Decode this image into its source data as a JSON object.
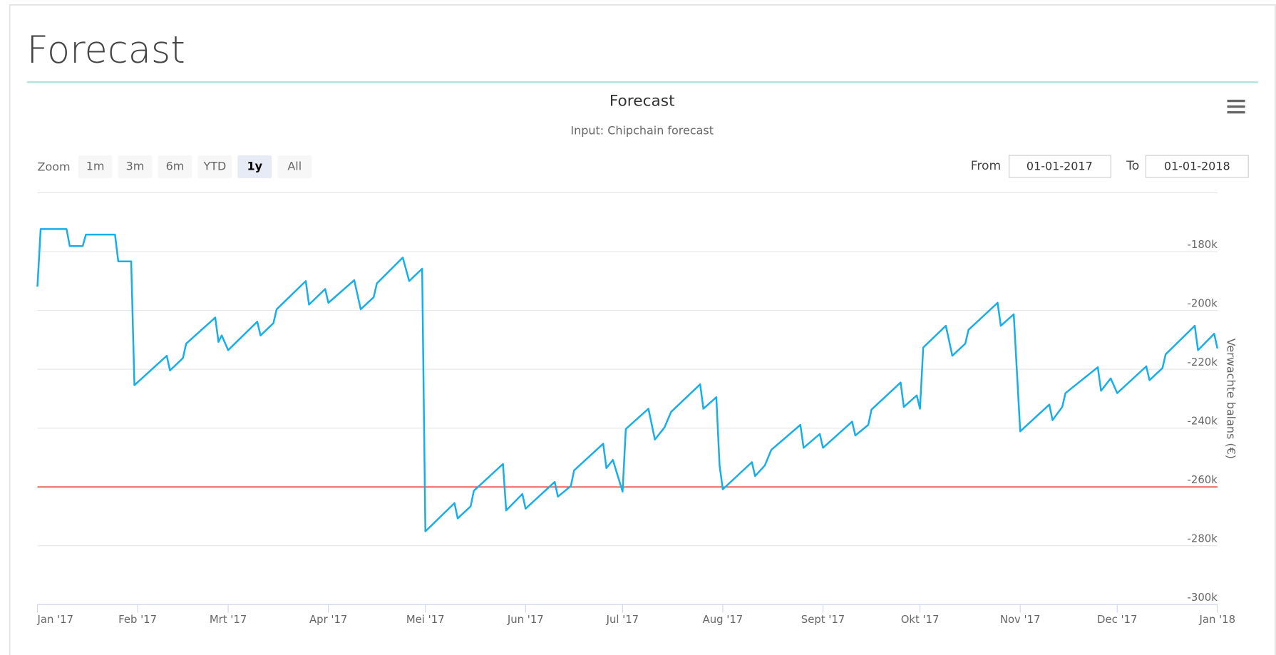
{
  "header": {
    "title": "Forecast"
  },
  "controls": {
    "zoom_label": "Zoom",
    "zoom_buttons": [
      "1m",
      "3m",
      "6m",
      "YTD",
      "1y",
      "All"
    ],
    "zoom_selected": 4,
    "from_label": "From",
    "from": "01-01-2017",
    "to_label": "To",
    "to": "01-01-2018"
  },
  "chart_data": {
    "type": "line",
    "title": "Forecast",
    "subtitle": "Input: Chipchain forecast",
    "y_axis_label": "Verwachte balans (€)",
    "y_axis_side": "right",
    "grid": true,
    "xlim": [
      0,
      365
    ],
    "xticks": [
      {
        "value": 0,
        "label": "Jan '17"
      },
      {
        "value": 31,
        "label": "Feb '17"
      },
      {
        "value": 59,
        "label": "Mrt '17"
      },
      {
        "value": 90,
        "label": "Apr '17"
      },
      {
        "value": 120,
        "label": "Mei '17"
      },
      {
        "value": 151,
        "label": "Jun '17"
      },
      {
        "value": 181,
        "label": "Jul '17"
      },
      {
        "value": 212,
        "label": "Aug '17"
      },
      {
        "value": 243,
        "label": "Sept '17"
      },
      {
        "value": 273,
        "label": "Okt '17"
      },
      {
        "value": 304,
        "label": "Nov '17"
      },
      {
        "value": 334,
        "label": "Dec '17"
      },
      {
        "value": 365,
        "label": "Jan '18"
      }
    ],
    "ylim": [
      -300000,
      -160000
    ],
    "yticks": [
      {
        "value": -300000,
        "label": "-300k"
      },
      {
        "value": -280000,
        "label": "-280k"
      },
      {
        "value": -260000,
        "label": "-260k"
      },
      {
        "value": -240000,
        "label": "-240k"
      },
      {
        "value": -220000,
        "label": "-220k"
      },
      {
        "value": -200000,
        "label": "-200k"
      },
      {
        "value": -180000,
        "label": "-180k"
      }
    ],
    "plot_line": {
      "value": -260000,
      "color": "#f0433a"
    },
    "x": [
      0,
      1,
      9,
      10,
      14,
      15,
      24,
      25,
      29,
      30,
      40,
      41,
      45,
      46,
      55,
      56,
      57,
      59,
      68,
      69,
      73,
      74,
      83,
      84,
      89,
      90,
      98,
      100,
      104,
      105,
      113,
      115,
      119,
      120,
      129,
      130,
      134,
      135,
      144,
      145,
      150,
      151,
      160,
      161,
      165,
      166,
      175,
      176,
      178,
      181,
      182,
      189,
      191,
      194,
      196,
      205,
      206,
      210,
      211,
      212,
      221,
      222,
      225,
      227,
      236,
      237,
      242,
      243,
      252,
      253,
      257,
      258,
      267,
      268,
      272,
      273,
      274,
      281,
      283,
      287,
      288,
      297,
      298,
      302,
      304,
      313,
      314,
      317,
      318,
      328,
      329,
      332,
      334,
      343,
      344,
      348,
      349,
      358,
      359,
      364,
      365
    ],
    "series": [
      {
        "color": "#18aeea",
        "values": [
          -191900,
          -172300,
          -172300,
          -178100,
          -178100,
          -174200,
          -174200,
          -183300,
          -183300,
          -225400,
          -215400,
          -220400,
          -216200,
          -211300,
          -202400,
          -210700,
          -208500,
          -213500,
          -203800,
          -208500,
          -204300,
          -199600,
          -190000,
          -198000,
          -192700,
          -197400,
          -189700,
          -199600,
          -195500,
          -190800,
          -182000,
          -190000,
          -185800,
          -275100,
          -265500,
          -270700,
          -266600,
          -261300,
          -252200,
          -268000,
          -262400,
          -267400,
          -258300,
          -263300,
          -259700,
          -254400,
          -245300,
          -253600,
          -250800,
          -261600,
          -240300,
          -233400,
          -243900,
          -239700,
          -234500,
          -225100,
          -233400,
          -229500,
          -252700,
          -260800,
          -251600,
          -256300,
          -252700,
          -247400,
          -238900,
          -246700,
          -242000,
          -246700,
          -237800,
          -242500,
          -238900,
          -233700,
          -224500,
          -232800,
          -228900,
          -233400,
          -212600,
          -205200,
          -215400,
          -211300,
          -206600,
          -197400,
          -205200,
          -201300,
          -241100,
          -232000,
          -237300,
          -232800,
          -228100,
          -219300,
          -227300,
          -223100,
          -228100,
          -219000,
          -223700,
          -219600,
          -214900,
          -205200,
          -213500,
          -207900,
          -212900
        ]
      }
    ]
  }
}
